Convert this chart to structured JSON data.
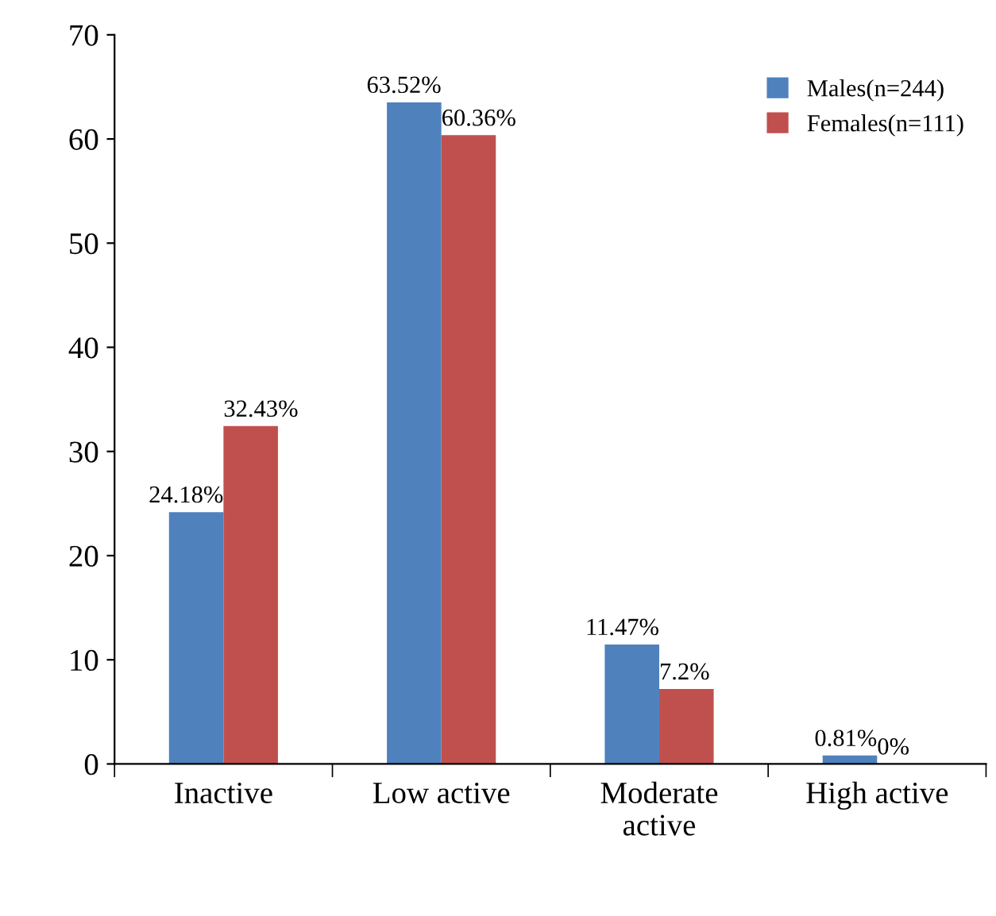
{
  "chart_data": {
    "type": "bar",
    "categories": [
      "Inactive",
      "Low active",
      "Moderate\nactive",
      "High active"
    ],
    "series": [
      {
        "name": "Males(n=244)",
        "color": "#4f81bd",
        "values": [
          24.18,
          63.52,
          11.47,
          0.81
        ],
        "value_labels": [
          "24.18%",
          "63.52%",
          "11.47%",
          "0.81%"
        ]
      },
      {
        "name": "Females(n=111)",
        "color": "#c0504d",
        "values": [
          32.43,
          60.36,
          7.2,
          0
        ],
        "value_labels": [
          "32.43%",
          "60.36%",
          "7.2%",
          "0%"
        ]
      }
    ],
    "ylim": [
      0,
      70
    ],
    "yticks": [
      0,
      10,
      20,
      30,
      40,
      50,
      60,
      70
    ],
    "grid": false,
    "legend": "top right"
  }
}
